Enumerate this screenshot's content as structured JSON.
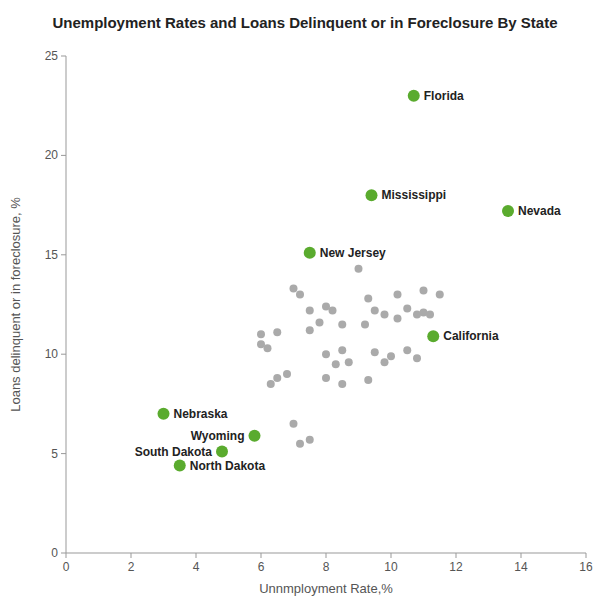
{
  "chart_data": {
    "type": "scatter",
    "title": "Unemployment Rates and Loans Delinquent or in Foreclosure By State",
    "x_label": "Unnmployment Rate,%",
    "y_label": "Loans delinquent or in foreclosure, %",
    "xlim": [
      0,
      16
    ],
    "ylim": [
      0,
      25
    ],
    "xticks": [
      0,
      2,
      4,
      6,
      8,
      10,
      12,
      14,
      16
    ],
    "yticks": [
      0,
      5,
      10,
      15,
      20,
      25
    ],
    "grid": false,
    "series": [
      {
        "color": "#aaaaaa",
        "x": [
          6.0,
          6.2,
          6.0,
          6.5,
          6.8,
          6.5,
          6.3,
          7.0,
          7.2,
          7.5,
          7.8,
          7.5,
          8.0,
          8.2,
          8.5,
          8.5,
          8.0,
          8.3,
          8.7,
          8.0,
          8.5,
          9.0,
          9.3,
          9.5,
          9.8,
          9.2,
          9.5,
          9.8,
          9.3,
          10.2,
          10.5,
          10.8,
          10.2,
          10.5,
          10.0,
          10.8,
          11.0,
          11.5,
          11.2,
          11.0,
          7.0,
          7.5,
          7.2
        ],
        "values": [
          10.5,
          10.3,
          11.0,
          11.1,
          9.0,
          8.8,
          8.5,
          13.3,
          13.0,
          12.2,
          11.6,
          11.2,
          12.4,
          12.2,
          11.5,
          10.2,
          10.0,
          9.5,
          9.6,
          8.8,
          8.5,
          14.3,
          12.8,
          12.2,
          12.0,
          11.5,
          10.1,
          9.6,
          8.7,
          13.0,
          12.3,
          12.0,
          11.8,
          10.2,
          9.9,
          9.8,
          13.2,
          13.0,
          12.0,
          12.1,
          6.5,
          5.7,
          5.5
        ]
      },
      {
        "color": "#5aab2e",
        "x": [
          10.7,
          9.4,
          13.6,
          7.5,
          11.3,
          3.0,
          5.8,
          4.8,
          3.5
        ],
        "values": [
          23.0,
          18.0,
          17.2,
          15.1,
          10.9,
          7.0,
          5.9,
          5.1,
          4.4
        ],
        "labels": [
          "Florida",
          "Mississippi",
          "Nevada",
          "New Jersey",
          "California",
          "Nebraska",
          "Wyoming",
          "South Dakota",
          "North Dakota"
        ]
      }
    ]
  }
}
